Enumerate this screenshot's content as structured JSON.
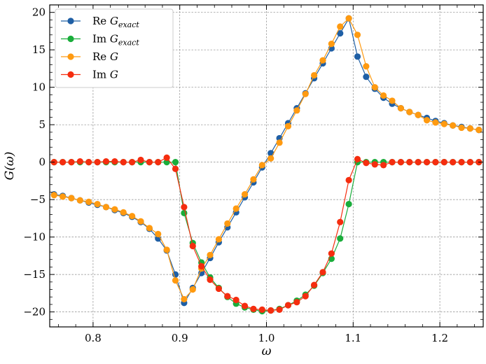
{
  "chart_data": {
    "type": "line",
    "title": "",
    "xlabel": "ω",
    "ylabel": "G(ω)",
    "xlim": [
      0.75,
      1.25
    ],
    "ylim": [
      -22,
      21
    ],
    "grid": true,
    "legend_position": "top-left",
    "xticks": [
      0.8,
      0.9,
      1.0,
      1.1,
      1.2
    ],
    "xtick_labels": [
      "0.8",
      "0.9",
      "1.0",
      "1.1",
      "1.2"
    ],
    "yticks": [
      -20,
      -15,
      -10,
      -5,
      0,
      5,
      10,
      15,
      20
    ],
    "ytick_labels": [
      "−20",
      "−15",
      "−10",
      "−5",
      "0",
      "5",
      "10",
      "15",
      "20"
    ],
    "series": [
      {
        "name": "Re G",
        "name_sub": "exact",
        "color": "#1f5fa5",
        "x": [
          0.755,
          0.765,
          0.775,
          0.785,
          0.795,
          0.805,
          0.815,
          0.825,
          0.835,
          0.845,
          0.855,
          0.865,
          0.875,
          0.885,
          0.895,
          0.905,
          0.915,
          0.925,
          0.935,
          0.945,
          0.955,
          0.965,
          0.975,
          0.985,
          0.995,
          1.005,
          1.015,
          1.025,
          1.035,
          1.045,
          1.055,
          1.065,
          1.075,
          1.085,
          1.095,
          1.105,
          1.115,
          1.125,
          1.135,
          1.145,
          1.155,
          1.165,
          1.175,
          1.185,
          1.195,
          1.205,
          1.215,
          1.225,
          1.235,
          1.245
        ],
        "y": [
          -4.3,
          -4.5,
          -4.8,
          -5.1,
          -5.4,
          -5.7,
          -6.0,
          -6.4,
          -6.8,
          -7.3,
          -8.0,
          -8.9,
          -10.2,
          -11.8,
          -15.0,
          -18.8,
          -16.8,
          -14.8,
          -12.8,
          -10.7,
          -8.7,
          -6.7,
          -4.7,
          -2.7,
          -0.7,
          1.2,
          3.2,
          5.2,
          7.2,
          9.2,
          11.2,
          13.2,
          15.2,
          17.2,
          19.2,
          14.1,
          11.4,
          9.8,
          8.6,
          7.8,
          7.2,
          6.7,
          6.3,
          5.9,
          5.5,
          5.2,
          4.9,
          4.7,
          4.5,
          4.3
        ]
      },
      {
        "name": "Im G",
        "name_sub": "exact",
        "color": "#1aad3b",
        "x": [
          0.755,
          0.765,
          0.775,
          0.785,
          0.795,
          0.805,
          0.815,
          0.825,
          0.835,
          0.845,
          0.855,
          0.865,
          0.875,
          0.885,
          0.895,
          0.905,
          0.915,
          0.925,
          0.935,
          0.945,
          0.955,
          0.965,
          0.975,
          0.985,
          0.995,
          1.005,
          1.015,
          1.025,
          1.035,
          1.045,
          1.055,
          1.065,
          1.075,
          1.085,
          1.095,
          1.105,
          1.115,
          1.125,
          1.135,
          1.145,
          1.155,
          1.165,
          1.175,
          1.185,
          1.195,
          1.205,
          1.215,
          1.225,
          1.235,
          1.245
        ],
        "y": [
          0.0,
          0.0,
          0.0,
          0.0,
          0.0,
          0.0,
          0.0,
          0.0,
          0.0,
          0.0,
          0.0,
          0.0,
          0.0,
          0.0,
          0.0,
          -6.8,
          -10.8,
          -13.4,
          -15.4,
          -16.8,
          -18.0,
          -18.9,
          -19.4,
          -19.7,
          -19.9,
          -19.8,
          -19.6,
          -19.1,
          -18.5,
          -17.7,
          -16.5,
          -14.8,
          -12.9,
          -10.2,
          -5.6,
          0.0,
          0.0,
          0.0,
          0.0,
          0.0,
          0.0,
          0.0,
          0.0,
          0.0,
          0.0,
          0.0,
          0.0,
          0.0,
          0.0,
          0.0
        ]
      },
      {
        "name": "Re G",
        "name_sub": "",
        "color": "#ff9a10",
        "x": [
          0.755,
          0.765,
          0.775,
          0.785,
          0.795,
          0.805,
          0.815,
          0.825,
          0.835,
          0.845,
          0.855,
          0.865,
          0.875,
          0.885,
          0.895,
          0.905,
          0.915,
          0.925,
          0.935,
          0.945,
          0.955,
          0.965,
          0.975,
          0.985,
          0.995,
          1.005,
          1.015,
          1.025,
          1.035,
          1.045,
          1.055,
          1.065,
          1.075,
          1.085,
          1.095,
          1.105,
          1.115,
          1.125,
          1.135,
          1.145,
          1.155,
          1.165,
          1.175,
          1.185,
          1.195,
          1.205,
          1.215,
          1.225,
          1.235,
          1.245
        ],
        "y": [
          -4.4,
          -4.6,
          -4.8,
          -5.1,
          -5.3,
          -5.6,
          -6.0,
          -6.3,
          -6.7,
          -7.2,
          -7.9,
          -8.8,
          -9.6,
          -11.7,
          -15.8,
          -18.3,
          -17.0,
          -14.2,
          -12.4,
          -10.3,
          -8.2,
          -6.2,
          -4.3,
          -2.3,
          -0.4,
          0.5,
          2.6,
          4.8,
          6.9,
          9.1,
          11.6,
          13.6,
          15.8,
          18.1,
          19.2,
          17.0,
          12.8,
          10.0,
          8.9,
          8.2,
          7.2,
          6.7,
          6.3,
          5.6,
          5.3,
          5.1,
          4.9,
          4.6,
          4.5,
          4.3
        ]
      },
      {
        "name": "Im G",
        "name_sub": "",
        "color": "#f52d0f",
        "x": [
          0.755,
          0.765,
          0.775,
          0.785,
          0.795,
          0.805,
          0.815,
          0.825,
          0.835,
          0.845,
          0.855,
          0.865,
          0.875,
          0.885,
          0.895,
          0.905,
          0.915,
          0.925,
          0.935,
          0.945,
          0.955,
          0.965,
          0.975,
          0.985,
          0.995,
          1.005,
          1.015,
          1.025,
          1.035,
          1.045,
          1.055,
          1.065,
          1.075,
          1.085,
          1.095,
          1.105,
          1.115,
          1.125,
          1.135,
          1.145,
          1.155,
          1.165,
          1.175,
          1.185,
          1.195,
          1.205,
          1.215,
          1.225,
          1.235,
          1.245
        ],
        "y": [
          0.0,
          0.0,
          0.0,
          0.1,
          0.0,
          0.0,
          0.1,
          0.1,
          0.0,
          0.0,
          0.3,
          0.0,
          0.0,
          0.6,
          -0.9,
          -6.0,
          -11.2,
          -13.9,
          -15.7,
          -16.9,
          -17.9,
          -18.4,
          -19.2,
          -19.6,
          -19.7,
          -19.8,
          -19.7,
          -19.1,
          -18.7,
          -17.9,
          -16.4,
          -14.7,
          -12.2,
          -8.0,
          -2.4,
          0.4,
          -0.1,
          -0.3,
          -0.4,
          0.0,
          0.0,
          0.0,
          0.0,
          0.0,
          0.0,
          0.0,
          0.0,
          0.0,
          0.0,
          0.0
        ]
      }
    ]
  }
}
